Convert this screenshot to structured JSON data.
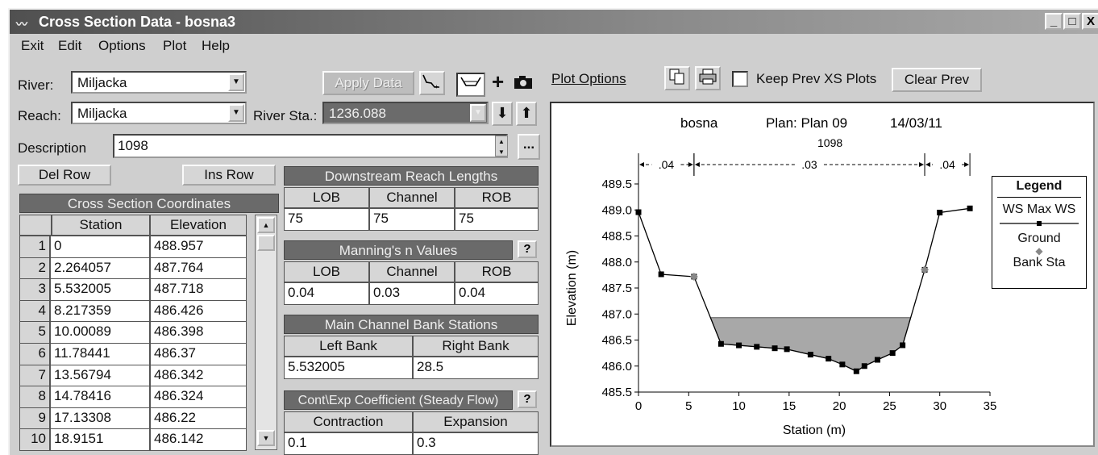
{
  "window": {
    "title": "Cross Section Data - bosna3",
    "controls": [
      "_",
      "□",
      "X"
    ]
  },
  "menu": [
    "Exit",
    "Edit",
    "Options",
    "Plot",
    "Help"
  ],
  "river": {
    "label": "River:",
    "value": "Miljacka"
  },
  "reach": {
    "label": "Reach:",
    "value": "Miljacka"
  },
  "river_sta": {
    "label": "River Sta.:",
    "value": "1236.088"
  },
  "description": {
    "label": "Description",
    "value": "1098"
  },
  "buttons": {
    "apply_data": "Apply Data",
    "del_row": "Del Row",
    "ins_row": "Ins Row",
    "plot_options": "Plot Options",
    "clear_prev": "Clear Prev",
    "keep_prev": "Keep Prev XS Plots",
    "ellipsis": "...",
    "help": "?"
  },
  "coords": {
    "title": "Cross Section Coordinates",
    "headers": [
      "Station",
      "Elevation"
    ],
    "rows": [
      {
        "n": "1",
        "station": "0",
        "elev": "488.957"
      },
      {
        "n": "2",
        "station": "2.264057",
        "elev": "487.764"
      },
      {
        "n": "3",
        "station": "5.532005",
        "elev": "487.718"
      },
      {
        "n": "4",
        "station": "8.217359",
        "elev": "486.426"
      },
      {
        "n": "5",
        "station": "10.00089",
        "elev": "486.398"
      },
      {
        "n": "6",
        "station": "11.78441",
        "elev": "486.37"
      },
      {
        "n": "7",
        "station": "13.56794",
        "elev": "486.342"
      },
      {
        "n": "8",
        "station": "14.78416",
        "elev": "486.324"
      },
      {
        "n": "9",
        "station": "17.13308",
        "elev": "486.22"
      },
      {
        "n": "10",
        "station": "18.9151",
        "elev": "486.142"
      }
    ]
  },
  "reach_lengths": {
    "title": "Downstream Reach Lengths",
    "headers": [
      "LOB",
      "Channel",
      "ROB"
    ],
    "values": [
      "75",
      "75",
      "75"
    ]
  },
  "mannings": {
    "title": "Manning's n Values",
    "headers": [
      "LOB",
      "Channel",
      "ROB"
    ],
    "values": [
      "0.04",
      "0.03",
      "0.04"
    ]
  },
  "bank_stations": {
    "title": "Main Channel Bank Stations",
    "headers": [
      "Left Bank",
      "Right Bank"
    ],
    "values": [
      "5.532005",
      "28.5"
    ]
  },
  "coefficients": {
    "title": "Cont\\Exp Coefficient (Steady Flow)",
    "headers": [
      "Contraction",
      "Expansion"
    ],
    "values": [
      "0.1",
      "0.3"
    ]
  },
  "plot_header": {
    "project": "bosna",
    "plan": "Plan: Plan 09",
    "date": "14/03/11",
    "section": "1098"
  },
  "chart_data": {
    "type": "line",
    "xlabel": "Station (m)",
    "ylabel": "Elevation (m)",
    "xlim": [
      0,
      35
    ],
    "ylim": [
      485.5,
      489.5
    ],
    "xticks": [
      "0",
      "5",
      "10",
      "15",
      "20",
      "25",
      "30",
      "35"
    ],
    "yticks": [
      "485.5",
      "486.0",
      "486.5",
      "487.0",
      "487.5",
      "488.0",
      "488.5",
      "489.0",
      "489.5"
    ],
    "ground": {
      "name": "Ground",
      "x": [
        0,
        2.26,
        5.53,
        8.22,
        10.0,
        11.78,
        13.57,
        14.78,
        17.13,
        18.92,
        20.3,
        21.7,
        22.5,
        23.8,
        25.3,
        26.3,
        28.5,
        30.0,
        33.0
      ],
      "y": [
        488.957,
        487.764,
        487.718,
        486.426,
        486.398,
        486.37,
        486.342,
        486.324,
        486.22,
        486.142,
        486.03,
        485.9,
        486.0,
        486.12,
        486.25,
        486.4,
        487.85,
        488.95,
        489.03
      ]
    },
    "ws_max": {
      "name": "WS Max WS",
      "elevation": 486.93
    },
    "bank_sta": {
      "name": "Bank Sta",
      "x": [
        5.53,
        28.5
      ],
      "y": [
        487.718,
        487.85
      ]
    },
    "n_values": [
      {
        "label": ".04",
        "from": 0,
        "to": 5.53
      },
      {
        "label": ".03",
        "from": 5.53,
        "to": 28.5
      },
      {
        "label": ".04",
        "from": 28.5,
        "to": 33.0
      }
    ],
    "legend": {
      "title": "Legend",
      "items": [
        "WS Max WS",
        "Ground",
        "Bank Sta"
      ],
      "placement": "right"
    },
    "colors": {
      "water": "#a8a8a8",
      "ground": "#000000",
      "bank": "#888888"
    }
  }
}
